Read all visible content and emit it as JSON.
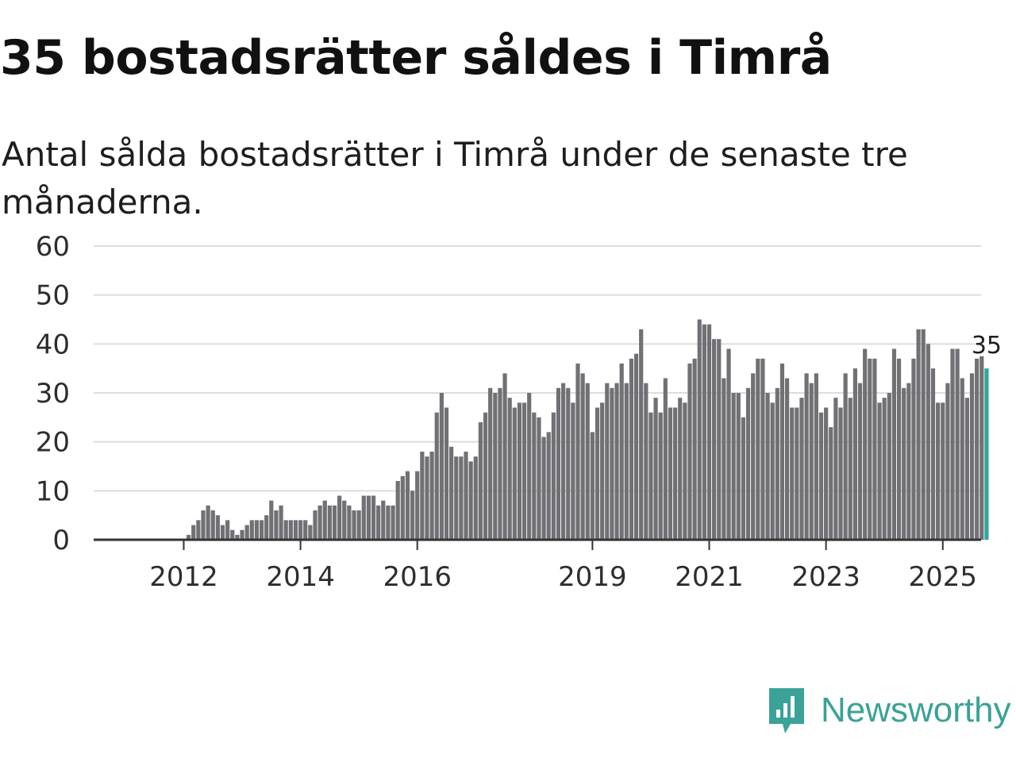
{
  "title": "35 bostadsrätter såldes i Timrå",
  "subtitle": "Antal sålda bostadsrätter i Timrå under de senaste tre månaderna.",
  "brand": {
    "name": "Newsworthy",
    "icon": "newsworthy-logo-icon"
  },
  "colors": {
    "bar": "#707075",
    "highlight": "#2ea79b",
    "grid": "#dddddd",
    "axis": "#333333",
    "brand": "#3aa297"
  },
  "chart_data": {
    "type": "bar",
    "title": "35 bostadsrätter såldes i Timrå",
    "xlabel": "",
    "ylabel": "",
    "ylim": [
      0,
      60
    ],
    "yticks": [
      0,
      10,
      20,
      30,
      40,
      50,
      60
    ],
    "grid": true,
    "start": "2011-04",
    "xticks": [
      {
        "label": "2012",
        "index": 9
      },
      {
        "label": "2014",
        "index": 33
      },
      {
        "label": "2016",
        "index": 57
      },
      {
        "label": "2019",
        "index": 93
      },
      {
        "label": "2021",
        "index": 117
      },
      {
        "label": "2023",
        "index": 141
      },
      {
        "label": "2025",
        "index": 165
      }
    ],
    "values": [
      0,
      0,
      0,
      0,
      0,
      0,
      0,
      0,
      0,
      0,
      1,
      3,
      4,
      6,
      7,
      6,
      5,
      3,
      4,
      2,
      1,
      2,
      3,
      4,
      4,
      4,
      5,
      8,
      6,
      7,
      4,
      4,
      4,
      4,
      4,
      3,
      6,
      7,
      8,
      7,
      7,
      9,
      8,
      7,
      6,
      6,
      9,
      9,
      9,
      7,
      8,
      7,
      7,
      12,
      13,
      14,
      10,
      14,
      18,
      17,
      18,
      26,
      30,
      27,
      19,
      17,
      17,
      18,
      16,
      17,
      24,
      26,
      31,
      30,
      31,
      34,
      29,
      27,
      28,
      28,
      30,
      26,
      25,
      21,
      22,
      26,
      31,
      32,
      31,
      28,
      36,
      34,
      32,
      22,
      27,
      28,
      32,
      31,
      32,
      36,
      32,
      37,
      38,
      43,
      32,
      26,
      29,
      26,
      33,
      27,
      27,
      29,
      28,
      36,
      37,
      45,
      44,
      44,
      41,
      41,
      33,
      39,
      30,
      30,
      25,
      31,
      34,
      37,
      37,
      30,
      28,
      31,
      36,
      33,
      27,
      27,
      29,
      34,
      32,
      34,
      26,
      27,
      23,
      29,
      27,
      34,
      29,
      35,
      32,
      39,
      37,
      37,
      28,
      29,
      30,
      39,
      37,
      31,
      32,
      37,
      43,
      43,
      40,
      35,
      28,
      28,
      32,
      39,
      39,
      33,
      29,
      34,
      37,
      37.5,
      35
    ],
    "highlight_index": 174,
    "highlight_label": "35"
  }
}
